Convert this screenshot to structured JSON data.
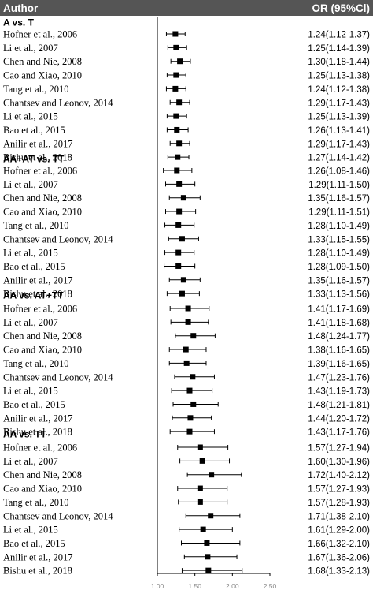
{
  "header": {
    "author_label": "Author",
    "or_label": "OR (95%Cl)"
  },
  "chart_data": {
    "type": "forest",
    "xlim": [
      1.0,
      2.5
    ],
    "ticks": [
      {
        "value": 1.0,
        "label": "1.00"
      },
      {
        "value": 1.5,
        "label": "1.50"
      },
      {
        "value": 2.0,
        "label": "2.00"
      },
      {
        "value": 2.5,
        "label": "2.50"
      }
    ],
    "groups": [
      {
        "name": "A vs. T",
        "studies": [
          {
            "author": "Hofner et al., 2006",
            "or": 1.24,
            "lo": 1.12,
            "hi": 1.37,
            "text": "1.24(1.12-1.37)"
          },
          {
            "author": "Li et al., 2007",
            "or": 1.25,
            "lo": 1.14,
            "hi": 1.39,
            "text": "1.25(1.14-1.39)"
          },
          {
            "author": "Chen and Nie, 2008",
            "or": 1.3,
            "lo": 1.18,
            "hi": 1.44,
            "text": "1.30(1.18-1.44)"
          },
          {
            "author": "Cao and Xiao, 2010",
            "or": 1.25,
            "lo": 1.13,
            "hi": 1.38,
            "text": "1.25(1.13-1.38)"
          },
          {
            "author": "Tang et al., 2010",
            "or": 1.24,
            "lo": 1.12,
            "hi": 1.38,
            "text": "1.24(1.12-1.38)"
          },
          {
            "author": "Chantsev and Leonov, 2014",
            "or": 1.29,
            "lo": 1.17,
            "hi": 1.43,
            "text": "1.29(1.17-1.43)"
          },
          {
            "author": "Li et al., 2015",
            "or": 1.25,
            "lo": 1.13,
            "hi": 1.39,
            "text": "1.25(1.13-1.39)"
          },
          {
            "author": "Bao et al., 2015",
            "or": 1.26,
            "lo": 1.13,
            "hi": 1.41,
            "text": "1.26(1.13-1.41)"
          },
          {
            "author": "Anilir et al., 2017",
            "or": 1.29,
            "lo": 1.17,
            "hi": 1.43,
            "text": "1.29(1.17-1.43)"
          },
          {
            "author": "Bishu et al., 2018",
            "or": 1.27,
            "lo": 1.14,
            "hi": 1.42,
            "text": "1.27(1.14-1.42)"
          }
        ]
      },
      {
        "name": "AA+AT vs. TT",
        "studies": [
          {
            "author": "Hofner et al., 2006",
            "or": 1.26,
            "lo": 1.08,
            "hi": 1.46,
            "text": "1.26(1.08-1.46)"
          },
          {
            "author": "Li et al., 2007",
            "or": 1.29,
            "lo": 1.11,
            "hi": 1.5,
            "text": "1.29(1.11-1.50)"
          },
          {
            "author": "Chen and Nie, 2008",
            "or": 1.35,
            "lo": 1.16,
            "hi": 1.57,
            "text": "1.35(1.16-1.57)"
          },
          {
            "author": "Cao and Xiao, 2010",
            "or": 1.29,
            "lo": 1.11,
            "hi": 1.51,
            "text": "1.29(1.11-1.51)"
          },
          {
            "author": "Tang et al., 2010",
            "or": 1.28,
            "lo": 1.1,
            "hi": 1.49,
            "text": "1.28(1.10-1.49)"
          },
          {
            "author": "Chantsev and Leonov, 2014",
            "or": 1.33,
            "lo": 1.15,
            "hi": 1.55,
            "text": "1.33(1.15-1.55)"
          },
          {
            "author": "Li et al., 2015",
            "or": 1.28,
            "lo": 1.1,
            "hi": 1.49,
            "text": "1.28(1.10-1.49)"
          },
          {
            "author": "Bao et al., 2015",
            "or": 1.28,
            "lo": 1.09,
            "hi": 1.5,
            "text": "1.28(1.09-1.50)"
          },
          {
            "author": "Anilir et al., 2017",
            "or": 1.35,
            "lo": 1.16,
            "hi": 1.57,
            "text": "1.35(1.16-1.57)"
          },
          {
            "author": "Bishu et al., 2018",
            "or": 1.33,
            "lo": 1.13,
            "hi": 1.56,
            "text": "1.33(1.13-1.56)"
          }
        ]
      },
      {
        "name": "AA vs. AT+TT",
        "studies": [
          {
            "author": "Hofner et al., 2006",
            "or": 1.41,
            "lo": 1.17,
            "hi": 1.69,
            "text": "1.41(1.17-1.69)"
          },
          {
            "author": "Li et al., 2007",
            "or": 1.41,
            "lo": 1.18,
            "hi": 1.68,
            "text": "1.41(1.18-1.68)"
          },
          {
            "author": "Chen and Nie, 2008",
            "or": 1.48,
            "lo": 1.24,
            "hi": 1.77,
            "text": "1.48(1.24-1.77)"
          },
          {
            "author": "Cao and Xiao, 2010",
            "or": 1.38,
            "lo": 1.16,
            "hi": 1.65,
            "text": "1.38(1.16-1.65)"
          },
          {
            "author": "Tang et al., 2010",
            "or": 1.39,
            "lo": 1.16,
            "hi": 1.65,
            "text": "1.39(1.16-1.65)"
          },
          {
            "author": "Chantsev and Leonov, 2014",
            "or": 1.47,
            "lo": 1.23,
            "hi": 1.76,
            "text": "1.47(1.23-1.76)"
          },
          {
            "author": "Li et al., 2015",
            "or": 1.43,
            "lo": 1.19,
            "hi": 1.73,
            "text": "1.43(1.19-1.73)"
          },
          {
            "author": "Bao et al., 2015",
            "or": 1.48,
            "lo": 1.21,
            "hi": 1.81,
            "text": "1.48(1.21-1.81)"
          },
          {
            "author": "Anilir et al., 2017",
            "or": 1.44,
            "lo": 1.2,
            "hi": 1.72,
            "text": "1.44(1.20-1.72)"
          },
          {
            "author": "Bishu et al., 2018",
            "or": 1.43,
            "lo": 1.17,
            "hi": 1.76,
            "text": "1.43(1.17-1.76)"
          }
        ]
      },
      {
        "name": "AA vs. TT",
        "studies": [
          {
            "author": "Hofner et al., 2006",
            "or": 1.57,
            "lo": 1.27,
            "hi": 1.94,
            "text": "1.57(1.27-1.94)"
          },
          {
            "author": "Li et al., 2007",
            "or": 1.6,
            "lo": 1.3,
            "hi": 1.96,
            "text": "1.60(1.30-1.96)"
          },
          {
            "author": "Chen and Nie, 2008",
            "or": 1.72,
            "lo": 1.4,
            "hi": 2.12,
            "text": "1.72(1.40-2.12)"
          },
          {
            "author": "Cao and Xiao, 2010",
            "or": 1.57,
            "lo": 1.27,
            "hi": 1.93,
            "text": "1.57(1.27-1.93)"
          },
          {
            "author": "Tang et al., 2010",
            "or": 1.57,
            "lo": 1.28,
            "hi": 1.93,
            "text": "1.57(1.28-1.93)"
          },
          {
            "author": "Chantsev and Leonov, 2014",
            "or": 1.71,
            "lo": 1.38,
            "hi": 2.1,
            "text": "1.71(1.38-2.10)"
          },
          {
            "author": "Li et al., 2015",
            "or": 1.61,
            "lo": 1.29,
            "hi": 2.0,
            "text": "1.61(1.29-2.00)"
          },
          {
            "author": "Bao et al., 2015",
            "or": 1.66,
            "lo": 1.32,
            "hi": 2.1,
            "text": "1.66(1.32-2.10)"
          },
          {
            "author": "Anilir et al., 2017",
            "or": 1.67,
            "lo": 1.36,
            "hi": 2.06,
            "text": "1.67(1.36-2.06)"
          },
          {
            "author": "Bishu et al., 2018",
            "or": 1.68,
            "lo": 1.33,
            "hi": 2.13,
            "text": "1.68(1.33-2.13)"
          }
        ]
      }
    ]
  }
}
